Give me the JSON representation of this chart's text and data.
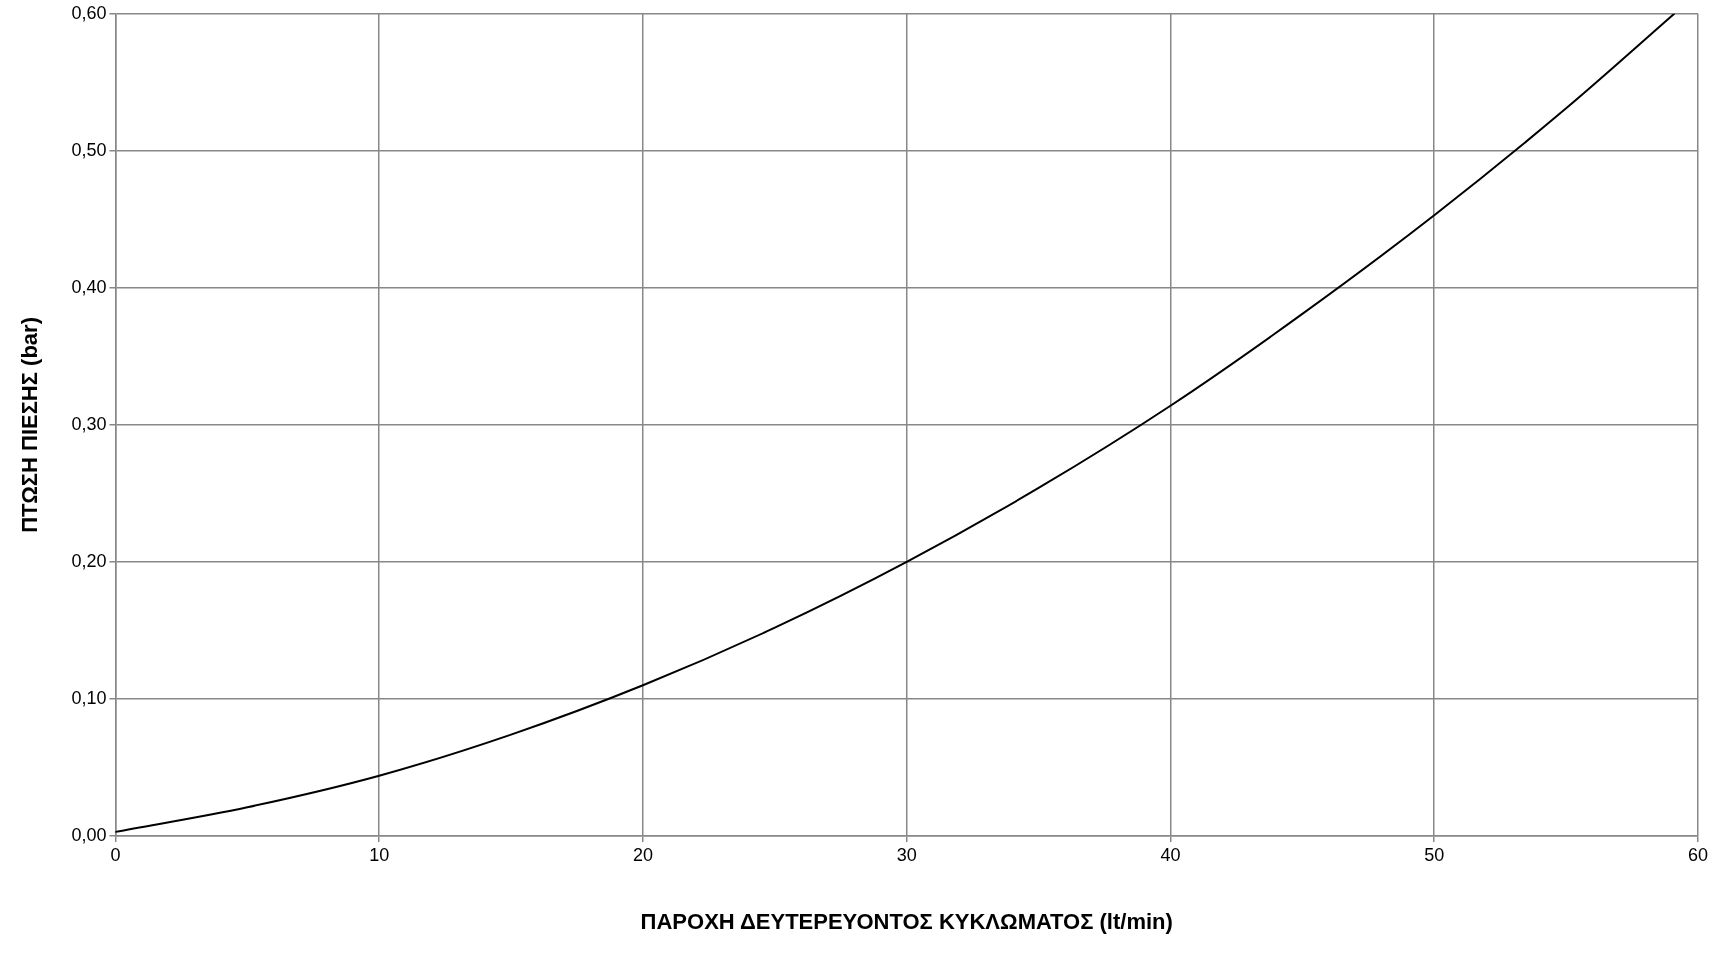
{
  "chart_data": {
    "type": "line",
    "xlabel": "ΠΑΡΟΧΗ ΔΕΥΤΕΡΕΥΟΝΤΟΣ ΚΥΚΛΩΜΑΤΟΣ (lt/min)",
    "ylabel": "ΠΤΩΣΗ ΠΙΕΣΗΣ (bar)",
    "series": [
      {
        "color": "#000000",
        "x": [
          0,
          5,
          10,
          15,
          20,
          25,
          30,
          35,
          40,
          45,
          50,
          55,
          59.1
        ],
        "values": [
          0.003,
          0.021,
          0.044,
          0.074,
          0.11,
          0.152,
          0.2,
          0.254,
          0.314,
          0.381,
          0.453,
          0.531,
          0.6
        ]
      }
    ],
    "xlim": [
      0,
      60
    ],
    "xticks": [
      0,
      10,
      20,
      30,
      40,
      50,
      60
    ],
    "ylim": [
      0,
      0.6
    ],
    "yticks": [
      {
        "value": 0,
        "label": "0,00"
      },
      {
        "value": 0.1,
        "label": "0,10"
      },
      {
        "value": 0.2,
        "label": "0,20"
      },
      {
        "value": 0.3,
        "label": "0,30"
      },
      {
        "value": 0.4,
        "label": "0,40"
      },
      {
        "value": 0.5,
        "label": "0,50"
      },
      {
        "value": 0.6,
        "label": "0,60"
      }
    ],
    "grid": true,
    "legend": false,
    "marker": "none",
    "line_style": "solid"
  }
}
